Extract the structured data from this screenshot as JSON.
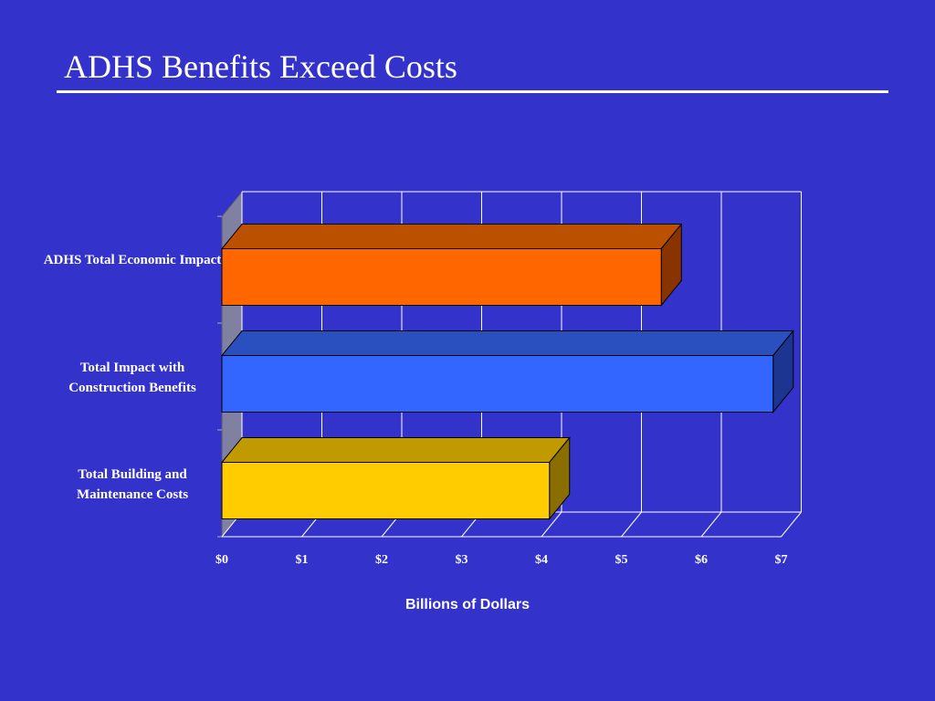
{
  "slide": {
    "title": "ADHS Benefits Exceed Costs"
  },
  "chart_data": {
    "type": "bar",
    "orientation": "horizontal",
    "three_d": true,
    "categories": [
      "ADHS Total Economic Impact",
      "Total Impact with Construction Benefits",
      "Total Building and Maintenance Costs"
    ],
    "values": [
      5.5,
      6.9,
      4.1
    ],
    "colors": {
      "bars": [
        "#ff6600",
        "#3366ff",
        "#ffcc00"
      ],
      "bar_tops": [
        "#bb5000",
        "#2a50c0",
        "#c09a00"
      ],
      "bar_sides": [
        "#883300",
        "#1c3590",
        "#8a6e00"
      ],
      "background": "#3333cc",
      "gridlines": "#ffffff",
      "left_wall": "#8080a0"
    },
    "xticks": [
      "$0",
      "$1",
      "$2",
      "$3",
      "$4",
      "$5",
      "$6",
      "$7"
    ],
    "xlim": [
      0,
      7
    ],
    "xlabel": "Billions of Dollars",
    "grid": true,
    "legend": "none"
  }
}
